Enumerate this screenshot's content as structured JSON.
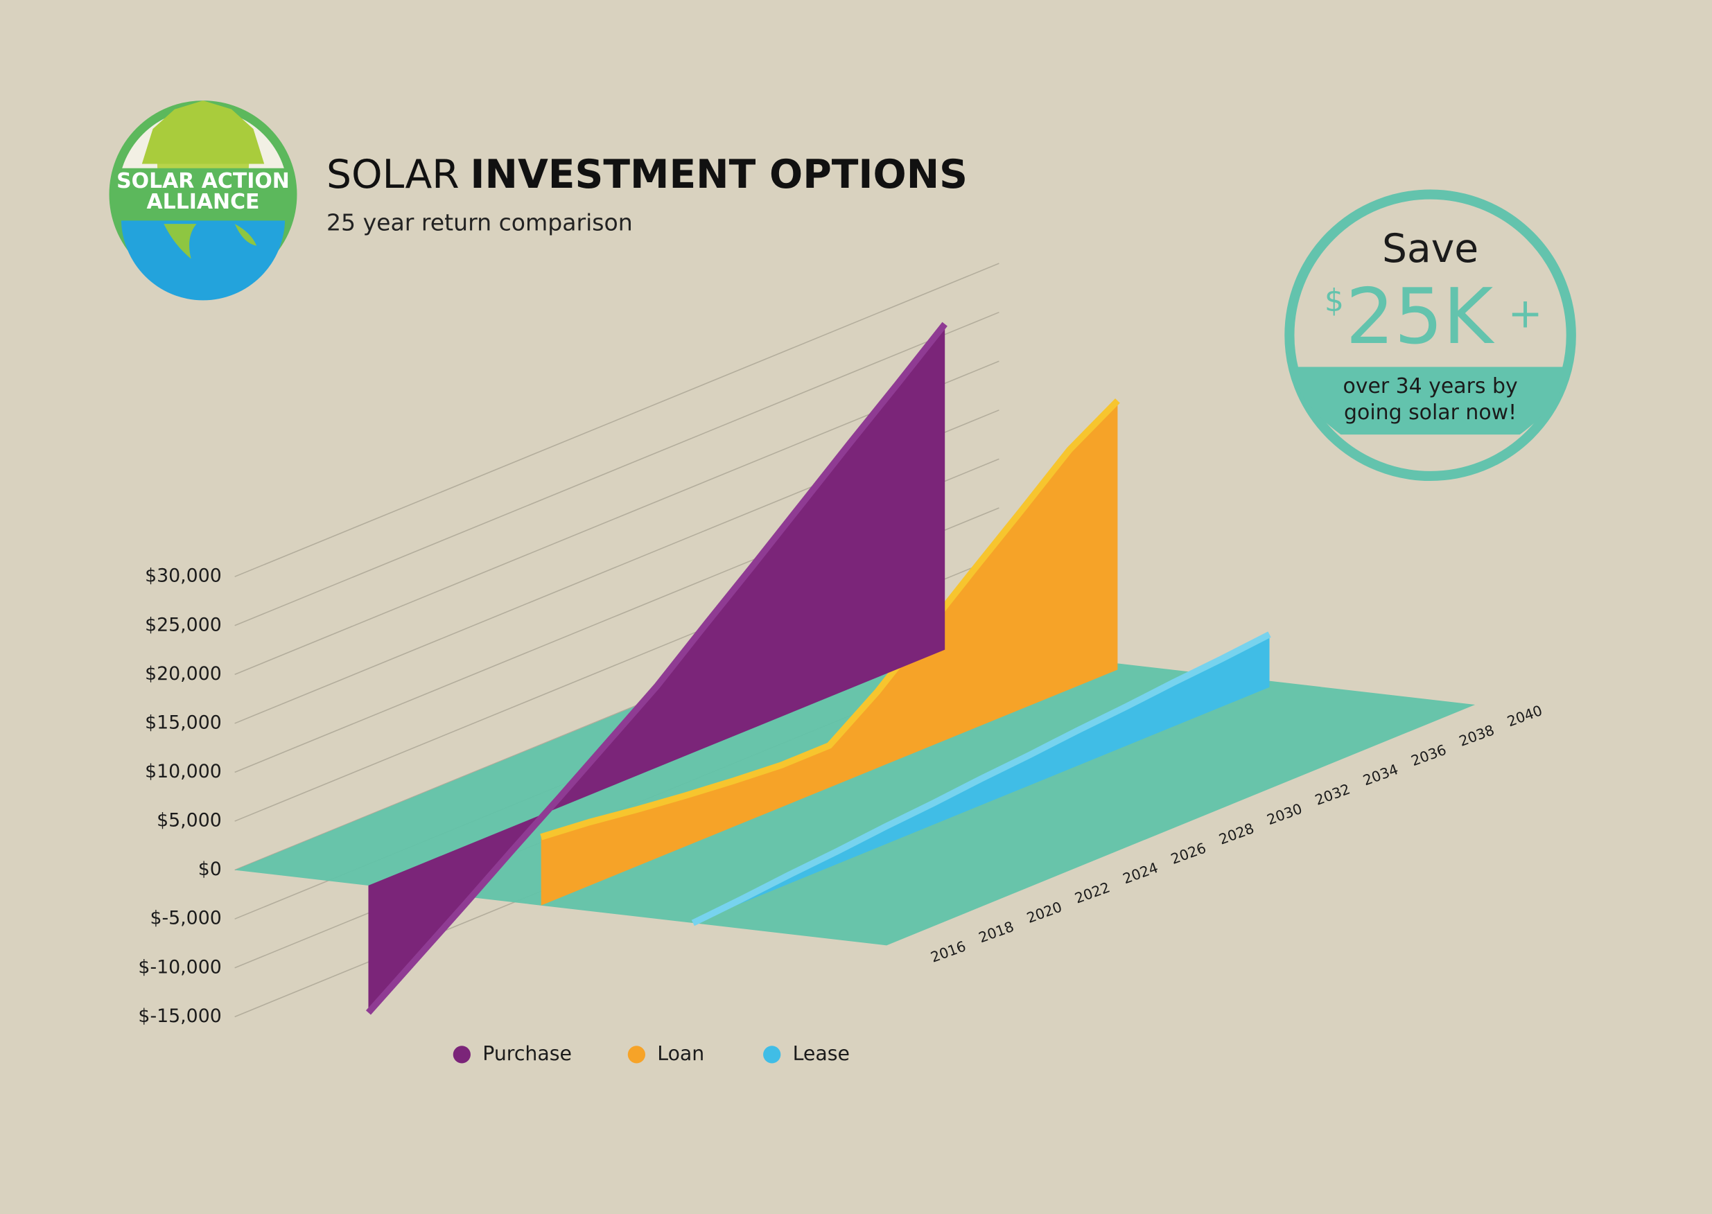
{
  "logo": {
    "line1": "SOLAR ACTION",
    "line2": "ALLIANCE"
  },
  "badge": {
    "save": "Save",
    "currency": "$",
    "amount": "25K",
    "plus": "+",
    "line1": "over 34 years by",
    "line2": "going solar now!"
  },
  "chart_data": {
    "type": "ribbon3d",
    "title": {
      "light": "SOLAR",
      "bold": "INVESTMENT OPTIONS"
    },
    "subtitle": "25 year return comparison",
    "x": [
      2016,
      2018,
      2020,
      2022,
      2024,
      2026,
      2028,
      2030,
      2032,
      2034,
      2036,
      2038,
      2040
    ],
    "xticks": [
      2016,
      2018,
      2020,
      2022,
      2024,
      2026,
      2028,
      2030,
      2032,
      2034,
      2036,
      2038,
      2040
    ],
    "xlim": [
      2016,
      2040
    ],
    "ylim": [
      -15000,
      30000
    ],
    "yticks": [
      {
        "value": -15000,
        "label": "$-15,000"
      },
      {
        "value": -10000,
        "label": "$-10,000"
      },
      {
        "value": -5000,
        "label": "$-5,000"
      },
      {
        "value": 0,
        "label": "$0"
      },
      {
        "value": 5000,
        "label": "$5,000"
      },
      {
        "value": 10000,
        "label": "$10,000"
      },
      {
        "value": 15000,
        "label": "$15,000"
      },
      {
        "value": 20000,
        "label": "$20,000"
      },
      {
        "value": 25000,
        "label": "$25,000"
      },
      {
        "value": 30000,
        "label": "$30,000"
      }
    ],
    "grid": true,
    "series": [
      {
        "name": "Purchase",
        "color": "#7b2579",
        "edge_color": "#8f3b93",
        "values": [
          -13000,
          -9500,
          -6000,
          -2400,
          1100,
          4700,
          8300,
          12500,
          16600,
          20800,
          25000,
          29100,
          33300
        ]
      },
      {
        "name": "Loan",
        "color": "#f6a328",
        "edge_color": "#f7c52e",
        "values": [
          7000,
          6500,
          5800,
          5200,
          4700,
          4300,
          4300,
          7800,
          12000,
          16200,
          20300,
          24500,
          27500
        ]
      },
      {
        "name": "Lease",
        "color": "#40bde6",
        "edge_color": "#77d3ee",
        "values": [
          0,
          400,
          900,
          1300,
          1800,
          2200,
          2700,
          3100,
          3600,
          4000,
          4500,
          4900,
          5400
        ]
      }
    ],
    "floor_color": "#62c3a9"
  }
}
